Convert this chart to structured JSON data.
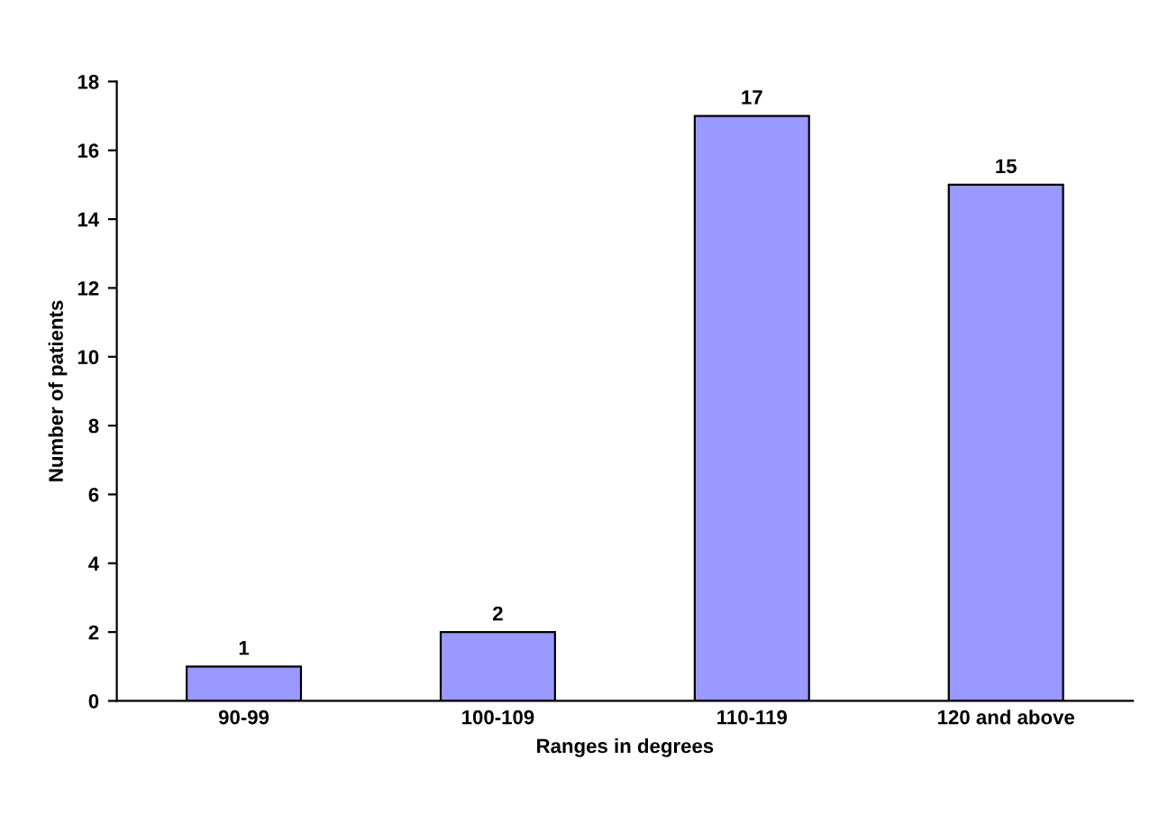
{
  "chart_data": {
    "type": "bar",
    "xlabel": "Ranges in degrees",
    "ylabel": "Number of patients",
    "categories": [
      "90-99",
      "100-109",
      "110-119",
      "120 and above"
    ],
    "values": [
      1,
      2,
      17,
      15
    ],
    "color": "#9999ff",
    "ylim": [
      0,
      18
    ],
    "yticks": [
      0,
      2,
      4,
      6,
      8,
      10,
      12,
      14,
      16,
      18
    ],
    "data_labels": true,
    "grid": false,
    "legend": false
  }
}
